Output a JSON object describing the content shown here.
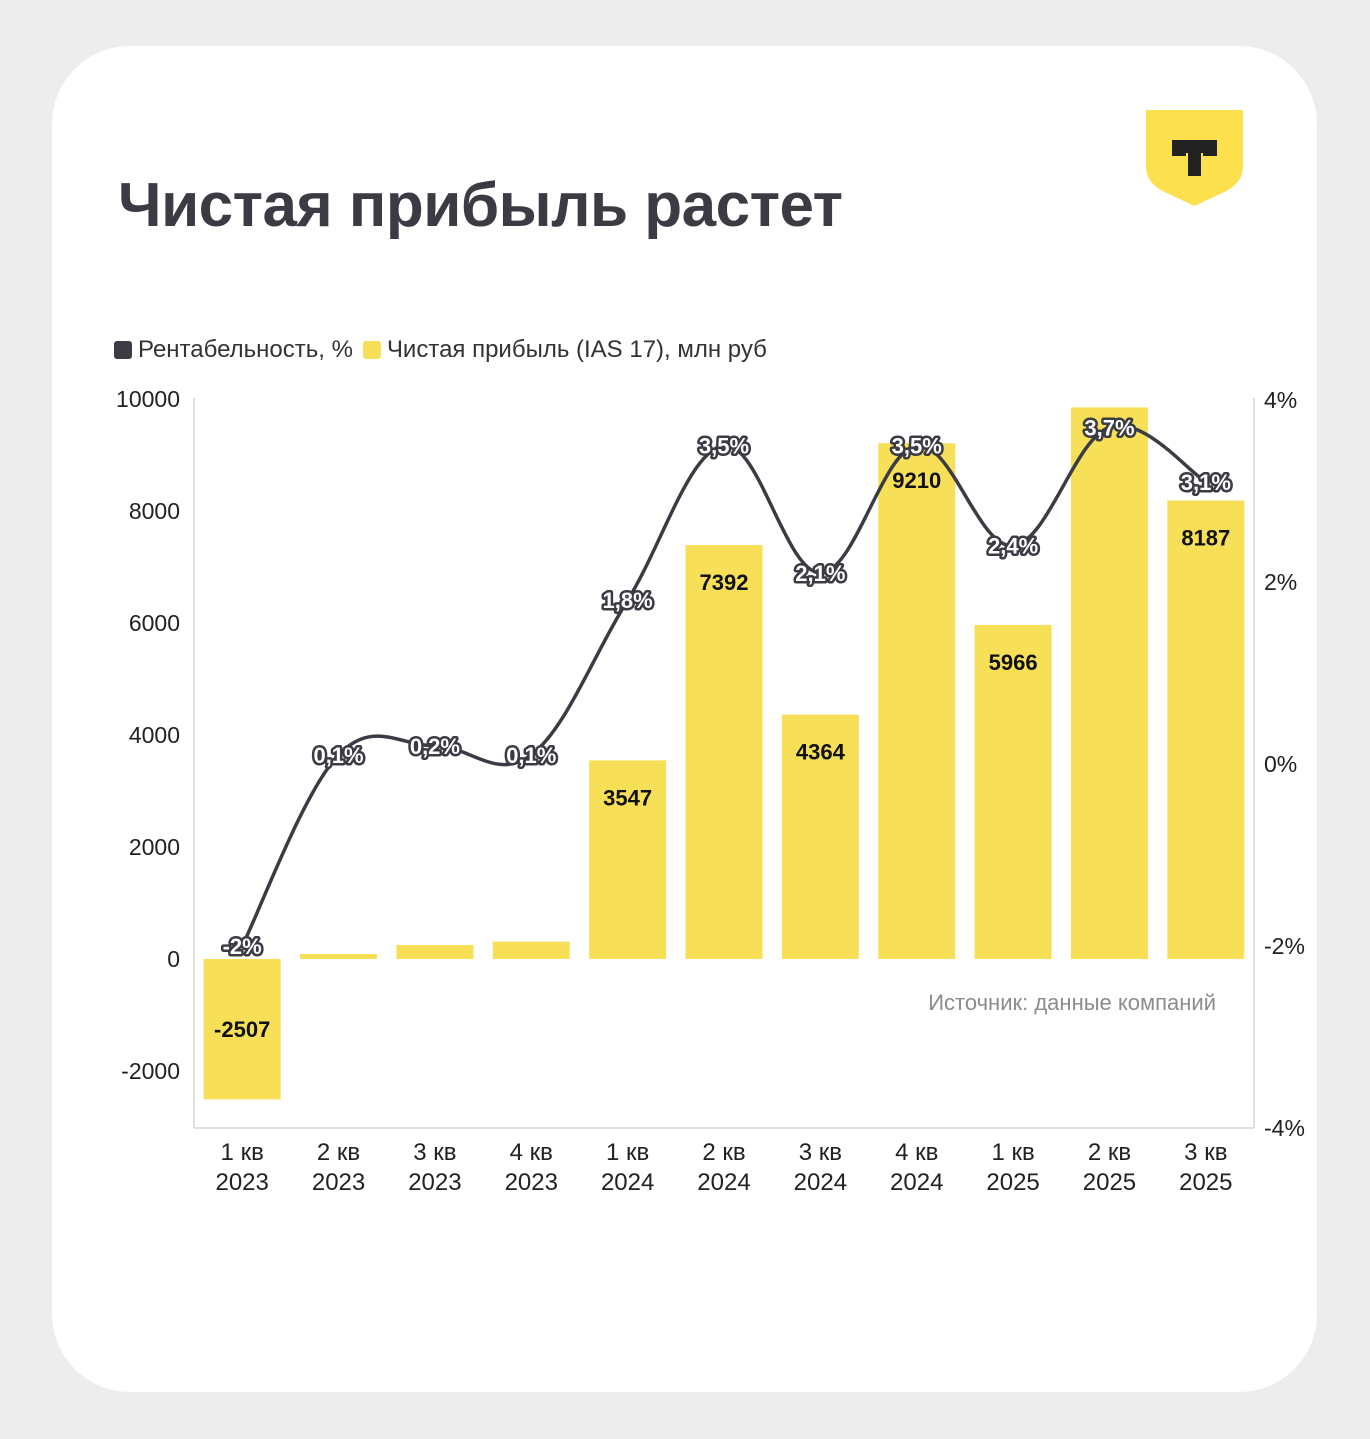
{
  "title": "Чистая прибыль растет",
  "logo_letter": "Т",
  "source": "Источник: данные компаний",
  "colors": {
    "bar": "#f7df58",
    "line": "#3b3b44",
    "accent": "#fde04e"
  },
  "legend": [
    {
      "label": "Рентабельность, %",
      "color": "#3b3b44"
    },
    {
      "label": "Чистая прибыль (IAS 17), млн руб",
      "color": "#f7df58"
    }
  ],
  "chart_data": {
    "type": "bar",
    "categories": [
      [
        "1 кв",
        "2023"
      ],
      [
        "2 кв",
        "2023"
      ],
      [
        "3 кв",
        "2023"
      ],
      [
        "4 кв",
        "2023"
      ],
      [
        "1 кв",
        "2024"
      ],
      [
        "2 кв",
        "2024"
      ],
      [
        "3 кв",
        "2024"
      ],
      [
        "4 кв",
        "2024"
      ],
      [
        "1 кв",
        "2025"
      ],
      [
        "2 кв",
        "2025"
      ],
      [
        "3 кв",
        "2025"
      ]
    ],
    "series": [
      {
        "name": "Чистая прибыль (IAS 17), млн руб",
        "type": "bar",
        "axis": "left",
        "values": [
          -2507,
          90,
          250,
          310,
          3547,
          7392,
          4364,
          9210,
          5966,
          9850,
          8187
        ],
        "labels": [
          "-2507",
          "",
          "",
          "",
          "3547",
          "7392",
          "4364",
          "9210",
          "5966",
          "",
          "8187"
        ]
      },
      {
        "name": "Рентабельность, %",
        "type": "line",
        "axis": "right",
        "values": [
          -2,
          0.1,
          0.2,
          0.1,
          1.8,
          3.5,
          2.1,
          3.5,
          2.4,
          3.7,
          3.1
        ],
        "labels": [
          "-2%",
          "0,1%",
          "0,2%",
          "0,1%",
          "1,8%",
          "3,5%",
          "2,1%",
          "3,5%",
          "2,4%",
          "3,7%",
          "3,1%"
        ]
      }
    ],
    "left_axis": {
      "ticks": [
        10000,
        8000,
        6000,
        4000,
        2000,
        0,
        -2000
      ],
      "ylim": [
        -3000,
        10000
      ]
    },
    "right_axis": {
      "ticks": [
        "4%",
        "2%",
        "0%",
        "-2%",
        "-4%"
      ],
      "tick_values": [
        4,
        2,
        0,
        -2,
        -4
      ],
      "ylim": [
        -4,
        4
      ]
    }
  }
}
